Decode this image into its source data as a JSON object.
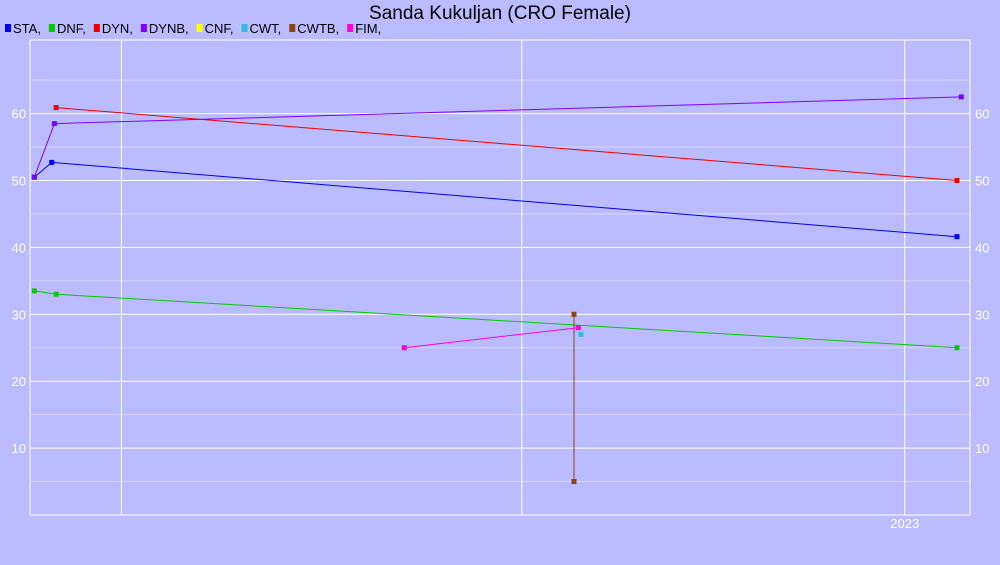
{
  "chart_data": {
    "type": "line",
    "title": "Sanda Kukuljan (CRO Female)",
    "xlabel": "",
    "ylabel": "",
    "ylim": [
      0,
      71
    ],
    "yticks": [
      10,
      20,
      30,
      40,
      50,
      60
    ],
    "x_tick_labels": [
      "2023"
    ],
    "grid": true,
    "legend_position": "top-left",
    "legend_separator": ",",
    "series": [
      {
        "name": "STA",
        "color": "#0000ee",
        "points": [
          [
            2013.0,
            50.5
          ],
          [
            2013.2,
            52.7
          ],
          [
            2023.6,
            41.6
          ]
        ]
      },
      {
        "name": "DNF",
        "color": "#00cc00",
        "points": [
          [
            2013.0,
            33.5
          ],
          [
            2013.25,
            33.0
          ],
          [
            2023.6,
            25.0
          ]
        ]
      },
      {
        "name": "DYN",
        "color": "#ee0000",
        "points": [
          [
            2013.25,
            60.9
          ],
          [
            2023.6,
            50.0
          ]
        ]
      },
      {
        "name": "DYNB",
        "color": "#7f00ff",
        "points": [
          [
            2013.0,
            50.5
          ],
          [
            2013.23,
            58.5
          ],
          [
            2023.65,
            62.5
          ]
        ]
      },
      {
        "name": "CNF",
        "color": "#ffff00",
        "points": []
      },
      {
        "name": "CWT",
        "color": "#33bbdd",
        "points": [
          [
            2019.28,
            27.0
          ]
        ]
      },
      {
        "name": "CWTB",
        "color": "#8b4513",
        "points": [
          [
            2019.2,
            30.0
          ],
          [
            2019.2,
            5.0
          ]
        ]
      },
      {
        "name": "FIM",
        "color": "#ff00dd",
        "points": [
          [
            2017.25,
            25.0
          ],
          [
            2019.25,
            28.0
          ]
        ]
      }
    ]
  }
}
